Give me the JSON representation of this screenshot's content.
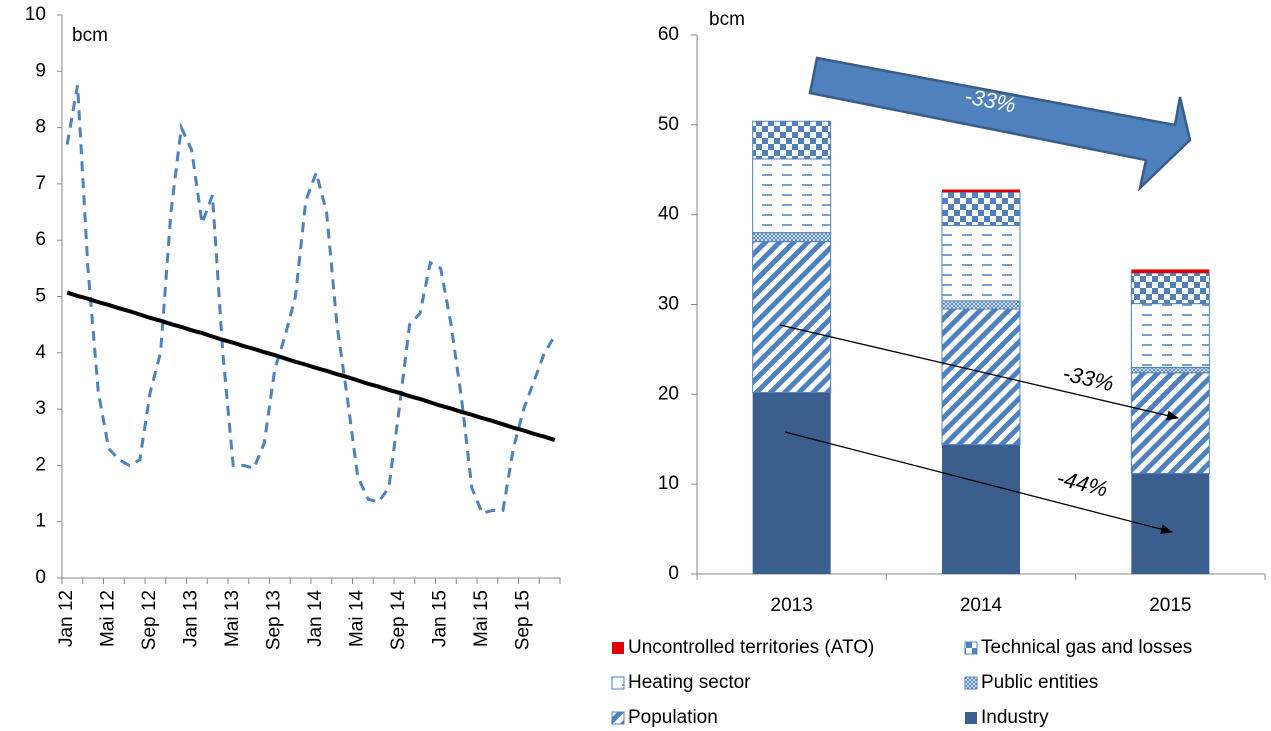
{
  "chart_data": [
    {
      "type": "line",
      "unit_label": "bcm",
      "categories": [
        "Jan 12",
        null,
        null,
        null,
        "Mai 12",
        null,
        null,
        null,
        "Sep 12",
        null,
        null,
        null,
        "Jan 13",
        null,
        null,
        null,
        "Mai 13",
        null,
        null,
        null,
        "Sep 13",
        null,
        null,
        null,
        "Jan 14",
        null,
        null,
        null,
        "Mai 14",
        null,
        null,
        null,
        "Sep 14",
        null,
        null,
        null,
        "Jan 15",
        null,
        null,
        null,
        "Mai 15",
        null,
        null,
        null,
        "Sep 15",
        null,
        null,
        null
      ],
      "series": [
        {
          "color": "#4f81bd",
          "dashed": true,
          "values": [
            7.7,
            8.75,
            5.5,
            3.3,
            2.3,
            2.1,
            2.0,
            2.1,
            3.3,
            4.0,
            6.5,
            8.0,
            7.6,
            6.3,
            6.8,
            4.0,
            2.0,
            2.0,
            1.95,
            2.4,
            3.7,
            4.3,
            5.0,
            6.7,
            7.2,
            6.5,
            4.5,
            3.2,
            1.8,
            1.4,
            1.35,
            1.6,
            3.0,
            4.5,
            4.7,
            5.6,
            5.5,
            4.5,
            3.2,
            1.6,
            1.15,
            1.2,
            1.2,
            2.3,
            3.0,
            3.5,
            4.0,
            4.3
          ]
        },
        {
          "color": "#000000",
          "dashed": false,
          "values": [
            5.07,
            5.01,
            4.96,
            4.9,
            4.85,
            4.79,
            4.74,
            4.68,
            4.62,
            4.57,
            4.51,
            4.46,
            4.4,
            4.35,
            4.29,
            4.23,
            4.18,
            4.12,
            4.07,
            4.01,
            3.96,
            3.9,
            3.84,
            3.79,
            3.73,
            3.68,
            3.62,
            3.57,
            3.51,
            3.45,
            3.4,
            3.34,
            3.29,
            3.23,
            3.18,
            3.12,
            3.06,
            3.01,
            2.95,
            2.9,
            2.84,
            2.79,
            2.73,
            2.67,
            2.62,
            2.56,
            2.51,
            2.45
          ]
        }
      ],
      "ylim": [
        0,
        10
      ],
      "yticks": [
        0,
        1,
        2,
        3,
        4,
        5,
        6,
        7,
        8,
        9,
        10
      ]
    },
    {
      "type": "stacked_bar",
      "unit_label": "bcm",
      "categories": [
        "2013",
        "2014",
        "2015"
      ],
      "series": [
        {
          "name": "Industry",
          "color": "#3a5f8f",
          "pattern": "solid",
          "values": [
            20.2,
            14.4,
            11.2
          ]
        },
        {
          "name": "Population",
          "color": "#4f81bd",
          "pattern": "diagonal",
          "values": [
            16.8,
            15.1,
            11.2
          ]
        },
        {
          "name": "Public entities",
          "color": "#4f81bd",
          "pattern": "cross",
          "values": [
            1.0,
            0.9,
            0.6
          ]
        },
        {
          "name": "Heating sector",
          "color": "#4f81bd",
          "pattern": "dash",
          "values": [
            8.2,
            8.4,
            7.1
          ]
        },
        {
          "name": "Technical gas and losses",
          "color": "#4f81bd",
          "pattern": "checker",
          "values": [
            4.2,
            3.7,
            3.4
          ]
        },
        {
          "name": "Uncontrolled territories (ATO)",
          "color": "#e00000",
          "pattern": "solid",
          "values": [
            0,
            0.3,
            0.4
          ]
        }
      ],
      "legend_order": [
        5,
        4,
        3,
        2,
        1,
        0
      ],
      "ylim": [
        0,
        60
      ],
      "yticks": [
        0,
        10,
        20,
        30,
        40,
        50,
        60
      ],
      "annotations": [
        "-33%",
        "-33%",
        "-44%"
      ]
    }
  ]
}
